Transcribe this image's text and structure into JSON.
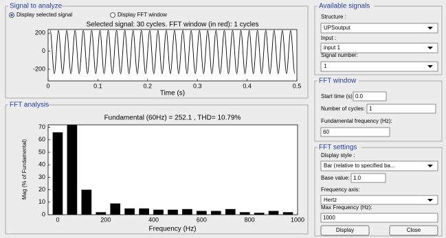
{
  "signal_panel": {
    "title": "Signal to analyze",
    "radio_options": [
      "Display selected signal",
      "Display FFT window"
    ],
    "plot": {
      "type": "line",
      "title": "Selected signal: 30 cycles. FFT window (in red): 1 cycles",
      "x_label": "Time (s)",
      "x": [
        0.0042,
        0.0125,
        0.0208,
        0.0292,
        0.0375,
        0.0458,
        0.0542,
        0.0625,
        0.0708,
        0.0792,
        0.0875,
        0.0958,
        0.1042,
        0.1125,
        0.1208,
        0.1292,
        0.1375,
        0.1458,
        0.1542,
        0.1625,
        0.1708,
        0.1792,
        0.1875,
        0.1958,
        0.2042,
        0.2125,
        0.2208,
        0.2292,
        0.2375,
        0.2458,
        0.2542,
        0.2625,
        0.2708,
        0.2792,
        0.2875,
        0.2958,
        0.3042,
        0.3125,
        0.3208,
        0.3292,
        0.3375,
        0.3458,
        0.3542,
        0.3625,
        0.3708,
        0.3792,
        0.3875,
        0.3958,
        0.4042,
        0.4125,
        0.4208,
        0.4292,
        0.4375,
        0.4458,
        0.4542,
        0.4625,
        0.4708,
        0.4792,
        0.4875,
        0.4958
      ],
      "values": [
        230,
        -250,
        230,
        -250,
        230,
        -250,
        230,
        -250,
        230,
        -250,
        230,
        -250,
        230,
        -250,
        230,
        -250,
        230,
        -250,
        230,
        -250,
        230,
        -250,
        230,
        -250,
        230,
        -250,
        230,
        -250,
        230,
        -250,
        230,
        -250,
        230,
        -250,
        230,
        -250,
        230,
        -250,
        230,
        -250,
        230,
        -250,
        230,
        -250,
        230,
        -250,
        230,
        -250,
        230,
        -250,
        230,
        -250,
        230,
        -250,
        230,
        -250,
        230,
        -250,
        230,
        -250
      ],
      "color": "#000000",
      "xlim": [
        0,
        0.5
      ],
      "xticks": [
        0,
        0.1,
        0.2,
        0.3,
        0.4,
        0.5
      ],
      "ylim": [
        -330,
        240
      ],
      "yticks": [
        -200,
        0,
        200
      ]
    }
  },
  "fft_panel": {
    "title": "FFT analysis",
    "chart": {
      "type": "bar",
      "title": "Fundamental (60Hz) = 252.1 , THD= 10.79%",
      "x_label": "Frequency (Hz)",
      "y_label": "Mag (% of Fundamental)",
      "x": [
        0,
        60,
        120,
        180,
        240,
        300,
        360,
        420,
        480,
        540,
        600,
        660,
        720,
        780,
        840,
        900,
        960
      ],
      "values": [
        66,
        72,
        20,
        2,
        9,
        5,
        5,
        4,
        4,
        4.5,
        3,
        3,
        4.5,
        2,
        1.5,
        3,
        2
      ],
      "color": "#000000",
      "xlim": [
        -40,
        1000
      ],
      "xticks": [
        0,
        200,
        400,
        600,
        800,
        1000
      ],
      "ylim": [
        0,
        72
      ],
      "yticks": [
        0,
        10,
        20,
        30,
        40,
        50,
        60,
        70
      ]
    }
  },
  "available_signals": {
    "title": "Available signals",
    "structure_label": "Structure :",
    "structure_value": "UPSoutput",
    "input_label": "Input :",
    "input_value": "input 1",
    "signal_number_label": "Signal number:",
    "signal_number_value": "1"
  },
  "fft_window": {
    "title": "FFT window",
    "start_time_label": "Start time (s):",
    "start_time_value": "0.0",
    "cycles_label": "Number of cycles:",
    "cycles_value": "1",
    "fundamental_label": "Fundamental frequency (Hz):",
    "fundamental_value": "60"
  },
  "fft_settings": {
    "title": "FFT settings",
    "display_style_label": "Display style :",
    "display_style_value": "Bar (relative to specified ba...",
    "base_value_label": "Base value:",
    "base_value": "1.0",
    "frequency_axis_label": "Frequency axis:",
    "frequency_axis_value": "Hertz",
    "max_frequency_label": "Max Frequency (Hz):",
    "max_frequency_value": "1000",
    "display_button": "Display",
    "close_button": "Close"
  }
}
